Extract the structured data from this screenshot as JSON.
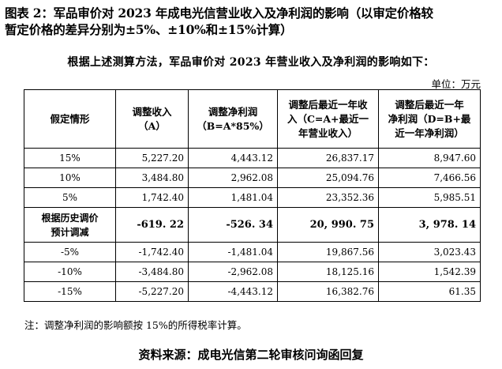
{
  "document": {
    "title_line1": "图表 2：军品审价对 2023 年成电光信营业收入及净利润的影响（以审定价格较",
    "title_line2": "暂定价格的差异分别为±5%、±10%和±15%计算）",
    "subtitle": "根据上述测算方法，军品审价对 2023 年营业收入及净利润的影响如下：",
    "unit": "单位：万元",
    "note": "注：调整净利润的影响额按 15%的所得税率计算。",
    "source": "资料来源：成电光信第二轮审核问询函回复"
  },
  "table": {
    "headers": [
      {
        "lines": [
          "假定情形"
        ]
      },
      {
        "lines": [
          "调整收入",
          "（A）"
        ]
      },
      {
        "lines": [
          "调整净利润",
          "（B=A*85%）"
        ]
      },
      {
        "lines": [
          "调整后最近一年收",
          "入（C=A+最近一",
          "年营业收入）"
        ]
      },
      {
        "lines": [
          "调整后最近一年",
          "净利润（D=B+最",
          "近一年净利润）"
        ]
      }
    ],
    "rows": [
      {
        "scenario": "15%",
        "adj_revenue": "5,227.20",
        "adj_net_profit": "4,443.12",
        "adj_revenue_total": "26,837.17",
        "adj_profit_total": "8,947.60"
      },
      {
        "scenario": "10%",
        "adj_revenue": "3,484.80",
        "adj_net_profit": "2,962.08",
        "adj_revenue_total": "25,094.76",
        "adj_profit_total": "7,466.56"
      },
      {
        "scenario": "5%",
        "adj_revenue": "1,742.40",
        "adj_net_profit": "1,481.04",
        "adj_revenue_total": "23,352.36",
        "adj_profit_total": "5,985.51"
      }
    ],
    "historical": {
      "scenario_line1": "根据历史调价",
      "scenario_line2": "预计调减",
      "adj_revenue": "-619. 22",
      "adj_net_profit": "-526. 34",
      "adj_revenue_total": "20, 990. 75",
      "adj_profit_total": "3, 978. 14"
    },
    "rows_negative": [
      {
        "scenario": "-5%",
        "adj_revenue": "-1,742.40",
        "adj_net_profit": "-1,481.04",
        "adj_revenue_total": "19,867.56",
        "adj_profit_total": "3,023.43"
      },
      {
        "scenario": "-10%",
        "adj_revenue": "-3,484.80",
        "adj_net_profit": "-2,962.08",
        "adj_revenue_total": "18,125.16",
        "adj_profit_total": "1,542.39"
      },
      {
        "scenario": "-15%",
        "adj_revenue": "-5,227.20",
        "adj_net_profit": "-4,443.12",
        "adj_revenue_total": "16,382.76",
        "adj_profit_total": "61.35"
      }
    ]
  }
}
